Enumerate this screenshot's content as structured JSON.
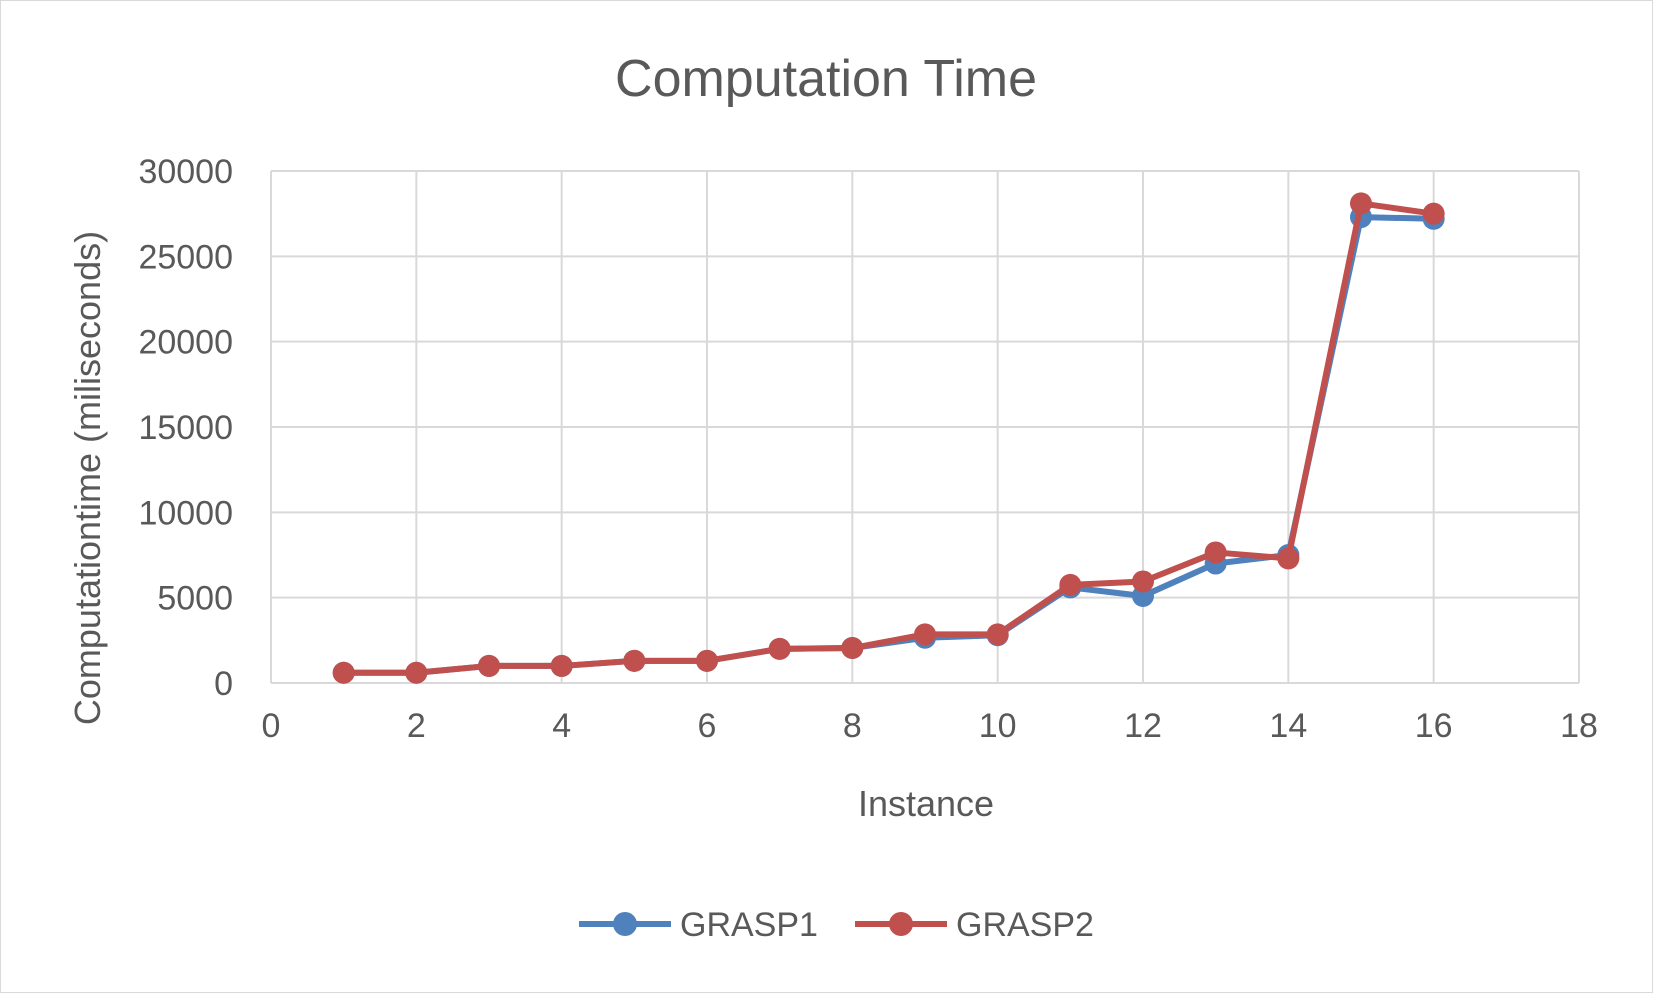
{
  "chart_data": {
    "type": "scatter",
    "title": "Computation Time",
    "xlabel": "Instance",
    "ylabel": "Computationtime (miliseconds)",
    "xlim": [
      0,
      18
    ],
    "ylim": [
      0,
      30000
    ],
    "x_ticks": [
      0,
      2,
      4,
      6,
      8,
      10,
      12,
      14,
      16,
      18
    ],
    "y_ticks": [
      0,
      5000,
      10000,
      15000,
      20000,
      25000,
      30000
    ],
    "x_tick_labels": [
      "0",
      "2",
      "4",
      "6",
      "8",
      "10",
      "12",
      "14",
      "16",
      "18"
    ],
    "y_tick_labels": [
      "0",
      "5000",
      "10000",
      "15000",
      "20000",
      "25000",
      "30000"
    ],
    "grid": true,
    "legend_position": "bottom",
    "series": [
      {
        "name": "GRASP1",
        "color": "#4f81bd",
        "x": [
          1,
          2,
          3,
          4,
          5,
          6,
          7,
          8,
          9,
          10,
          11,
          12,
          13,
          14,
          15,
          16
        ],
        "y": [
          600,
          600,
          1000,
          1000,
          1300,
          1300,
          2000,
          2050,
          2650,
          2800,
          5600,
          5100,
          7000,
          7500,
          27300,
          27200
        ]
      },
      {
        "name": "GRASP2",
        "color": "#c0504d",
        "x": [
          1,
          2,
          3,
          4,
          5,
          6,
          7,
          8,
          9,
          10,
          11,
          12,
          13,
          14,
          15,
          16
        ],
        "y": [
          600,
          600,
          1000,
          1000,
          1300,
          1300,
          2000,
          2050,
          2850,
          2850,
          5750,
          5950,
          7650,
          7300,
          28100,
          27500
        ]
      }
    ]
  }
}
